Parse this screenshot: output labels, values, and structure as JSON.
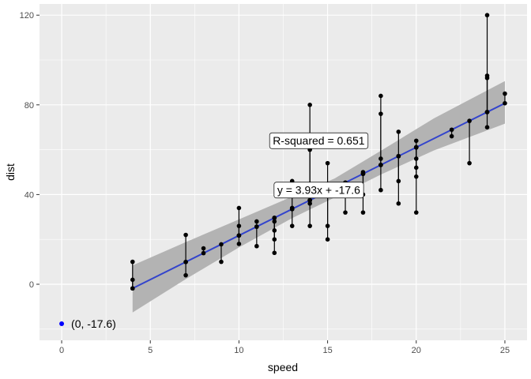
{
  "chart_data": {
    "type": "scatter",
    "title": "",
    "xlabel": "speed",
    "ylabel": "dist",
    "xlim": [
      -1.25,
      26.25
    ],
    "ylim": [
      -25,
      125
    ],
    "xticks": [
      0,
      5,
      10,
      15,
      20,
      25
    ],
    "yticks": [
      0,
      40,
      80,
      120
    ],
    "xtick_labels": [
      "0",
      "5",
      "10",
      "15",
      "20",
      "25"
    ],
    "ytick_labels": [
      "0",
      "40",
      "80",
      "120"
    ],
    "grid": true,
    "colors": {
      "panel": "#ebebeb",
      "grid": "#ffffff",
      "points": "#000000",
      "fit_line": "#3344cc",
      "ribbon": "#b3b3b3",
      "intercept_point": "#0000ff"
    },
    "points": [
      {
        "x": 4,
        "y": 2
      },
      {
        "x": 4,
        "y": 10
      },
      {
        "x": 7,
        "y": 4
      },
      {
        "x": 7,
        "y": 22
      },
      {
        "x": 8,
        "y": 16
      },
      {
        "x": 9,
        "y": 10
      },
      {
        "x": 10,
        "y": 18
      },
      {
        "x": 10,
        "y": 26
      },
      {
        "x": 10,
        "y": 34
      },
      {
        "x": 11,
        "y": 17
      },
      {
        "x": 11,
        "y": 28
      },
      {
        "x": 12,
        "y": 14
      },
      {
        "x": 12,
        "y": 20
      },
      {
        "x": 12,
        "y": 24
      },
      {
        "x": 12,
        "y": 28
      },
      {
        "x": 13,
        "y": 26
      },
      {
        "x": 13,
        "y": 34
      },
      {
        "x": 13,
        "y": 34
      },
      {
        "x": 13,
        "y": 46
      },
      {
        "x": 14,
        "y": 26
      },
      {
        "x": 14,
        "y": 36
      },
      {
        "x": 14,
        "y": 60
      },
      {
        "x": 14,
        "y": 80
      },
      {
        "x": 15,
        "y": 20
      },
      {
        "x": 15,
        "y": 26
      },
      {
        "x": 15,
        "y": 54
      },
      {
        "x": 16,
        "y": 32
      },
      {
        "x": 16,
        "y": 40
      },
      {
        "x": 17,
        "y": 32
      },
      {
        "x": 17,
        "y": 40
      },
      {
        "x": 17,
        "y": 50
      },
      {
        "x": 18,
        "y": 42
      },
      {
        "x": 18,
        "y": 56
      },
      {
        "x": 18,
        "y": 76
      },
      {
        "x": 18,
        "y": 84
      },
      {
        "x": 19,
        "y": 36
      },
      {
        "x": 19,
        "y": 46
      },
      {
        "x": 19,
        "y": 68
      },
      {
        "x": 20,
        "y": 32
      },
      {
        "x": 20,
        "y": 48
      },
      {
        "x": 20,
        "y": 52
      },
      {
        "x": 20,
        "y": 56
      },
      {
        "x": 20,
        "y": 64
      },
      {
        "x": 22,
        "y": 66
      },
      {
        "x": 23,
        "y": 54
      },
      {
        "x": 24,
        "y": 70
      },
      {
        "x": 24,
        "y": 92
      },
      {
        "x": 24,
        "y": 93
      },
      {
        "x": 24,
        "y": 120
      },
      {
        "x": 25,
        "y": 85
      }
    ],
    "fit": {
      "slope": 3.932,
      "intercept": -17.579
    },
    "ribbon": [
      {
        "x": 4,
        "lower": -12.6,
        "upper": 8.4
      },
      {
        "x": 7,
        "lower": 2.3,
        "upper": 18.8
      },
      {
        "x": 10,
        "lower": 16.4,
        "upper": 28.9
      },
      {
        "x": 13,
        "lower": 29.5,
        "upper": 39.1
      },
      {
        "x": 15.4,
        "lower": 38.7,
        "upper": 47.2
      },
      {
        "x": 18,
        "lower": 48.9,
        "upper": 59.5
      },
      {
        "x": 21,
        "lower": 59.7,
        "upper": 74.0
      },
      {
        "x": 25,
        "lower": 71.6,
        "upper": 90.6
      }
    ],
    "intercept_point": {
      "x": 0,
      "y": -17.6,
      "label": "(0, -17.6)"
    },
    "annotations": [
      {
        "text": "R-squared = 0.651",
        "x": 14.5,
        "y": 64
      },
      {
        "text": "y = 3.93x + -17.6",
        "x": 14.5,
        "y": 42
      }
    ]
  }
}
